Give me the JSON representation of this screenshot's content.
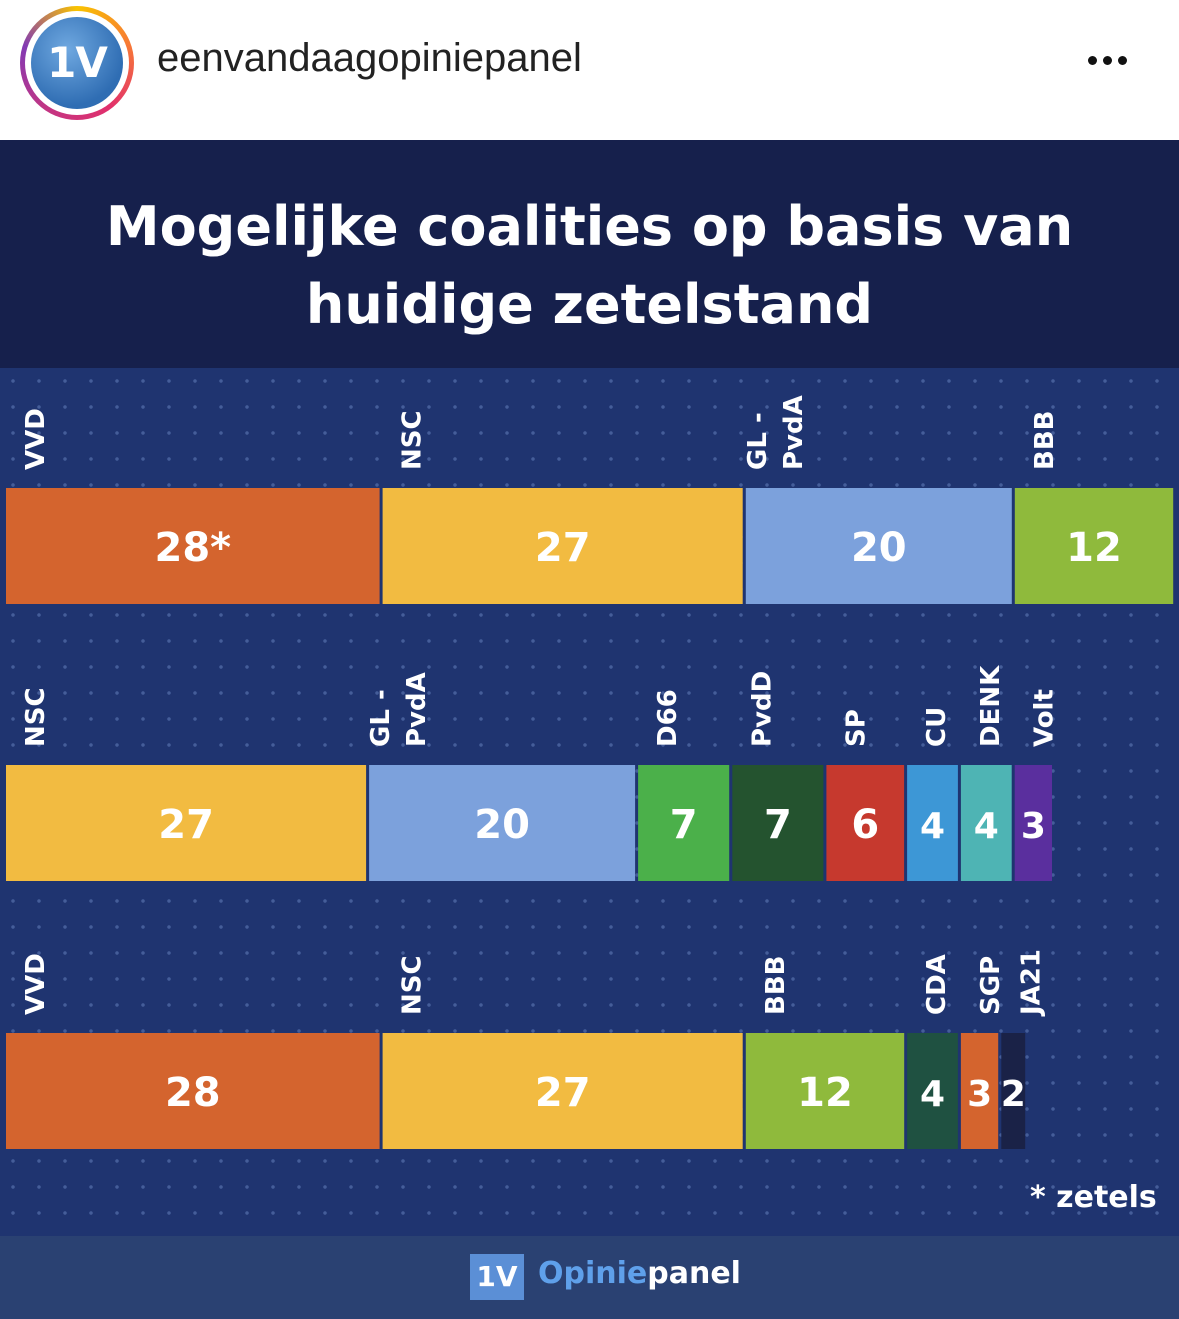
{
  "header": {
    "avatar_text": "1V",
    "username": "eenvandaagopiniepanel"
  },
  "post": {
    "title_line1": "Mogelijke coalities op basis van",
    "title_line2": "huidige zetelstand",
    "note": "* zetels",
    "footer_logo": "1V",
    "footer_word_a": "Opinie",
    "footer_word_b": "panel"
  },
  "chart_data": {
    "type": "bar",
    "orientation": "horizontal-stacked",
    "title": "Mogelijke coalities op basis van huidige zetelstand",
    "rows": [
      {
        "segments": [
          {
            "party": "VVD",
            "seats": 28,
            "label": "28*",
            "color": "#d4642e"
          },
          {
            "party": "NSC",
            "seats": 27,
            "label": "27",
            "color": "#f2bb41"
          },
          {
            "party": "GL - PvdA",
            "seats": 20,
            "label": "20",
            "color": "#7ca1dc"
          },
          {
            "party": "BBB",
            "seats": 12,
            "label": "12",
            "color": "#8fba3c"
          }
        ]
      },
      {
        "segments": [
          {
            "party": "NSC",
            "seats": 27,
            "label": "27",
            "color": "#f2bb41"
          },
          {
            "party": "GL - PvdA",
            "seats": 20,
            "label": "20",
            "color": "#7ca1dc"
          },
          {
            "party": "D66",
            "seats": 7,
            "label": "7",
            "color": "#4bb04a"
          },
          {
            "party": "PvdD",
            "seats": 7,
            "label": "7",
            "color": "#24532f"
          },
          {
            "party": "SP",
            "seats": 6,
            "label": "6",
            "color": "#c6392e"
          },
          {
            "party": "CU",
            "seats": 4,
            "label": "4",
            "color": "#3d97d6"
          },
          {
            "party": "DENK",
            "seats": 4,
            "label": "4",
            "color": "#4eb4b4"
          },
          {
            "party": "Volt",
            "seats": 3,
            "label": "3",
            "color": "#5a2f9e"
          }
        ]
      },
      {
        "segments": [
          {
            "party": "VVD",
            "seats": 28,
            "label": "28",
            "color": "#d4642e"
          },
          {
            "party": "NSC",
            "seats": 27,
            "label": "27",
            "color": "#f2bb41"
          },
          {
            "party": "BBB",
            "seats": 12,
            "label": "12",
            "color": "#8fba3c"
          },
          {
            "party": "CDA",
            "seats": 4,
            "label": "4",
            "color": "#1f5141"
          },
          {
            "party": "SGP",
            "seats": 3,
            "label": "3",
            "color": "#d4642e"
          },
          {
            "party": "JA21",
            "seats": 2,
            "label": "2",
            "color": "#1a2247"
          }
        ]
      }
    ]
  }
}
